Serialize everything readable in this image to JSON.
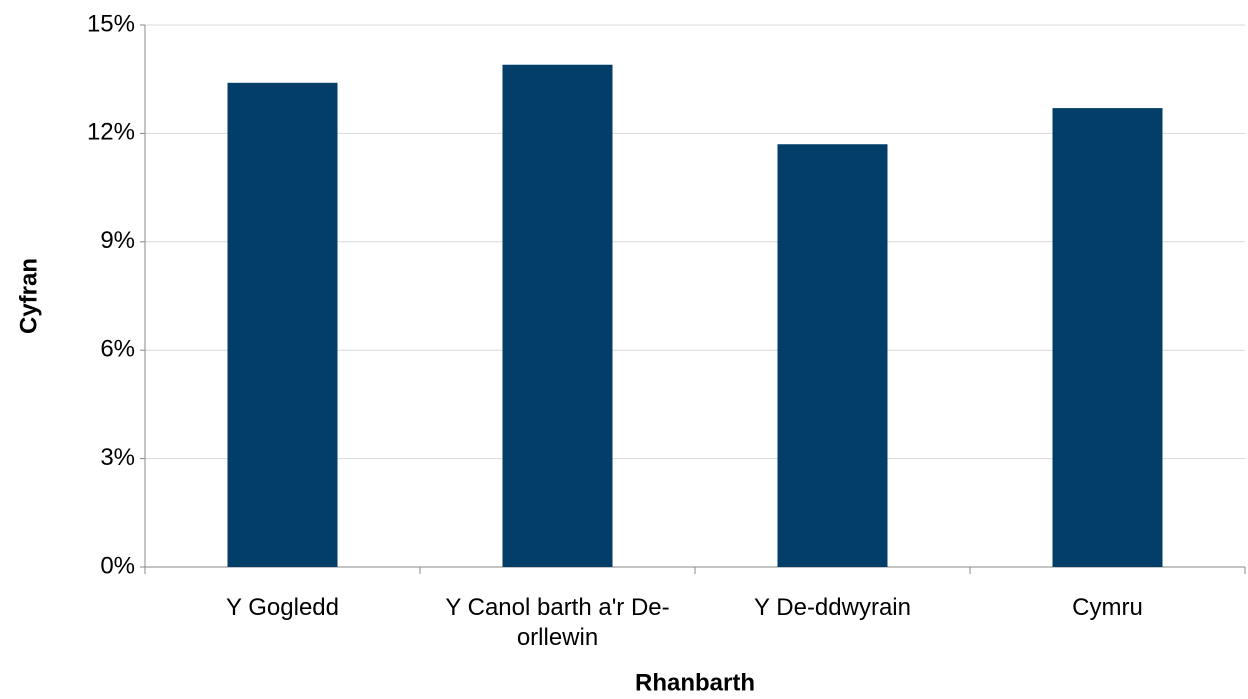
{
  "chart_data": {
    "type": "bar",
    "x_label": "Rhanbarth",
    "y_label": "Cyfran",
    "categories": [
      "Y Gogledd",
      "Y Canol barth a'r De-orllewin",
      "Y De-ddwyrain",
      "Cymru"
    ],
    "values": [
      13.4,
      13.9,
      11.7,
      12.7
    ],
    "color": "#023e68",
    "ylim": [
      0,
      15
    ],
    "yticks": [
      {
        "value": 0,
        "label": "0%"
      },
      {
        "value": 3,
        "label": "3%"
      },
      {
        "value": 6,
        "label": "6%"
      },
      {
        "value": 9,
        "label": "9%"
      },
      {
        "value": 12,
        "label": "12%"
      },
      {
        "value": 15,
        "label": "15%"
      }
    ],
    "grid": true
  }
}
